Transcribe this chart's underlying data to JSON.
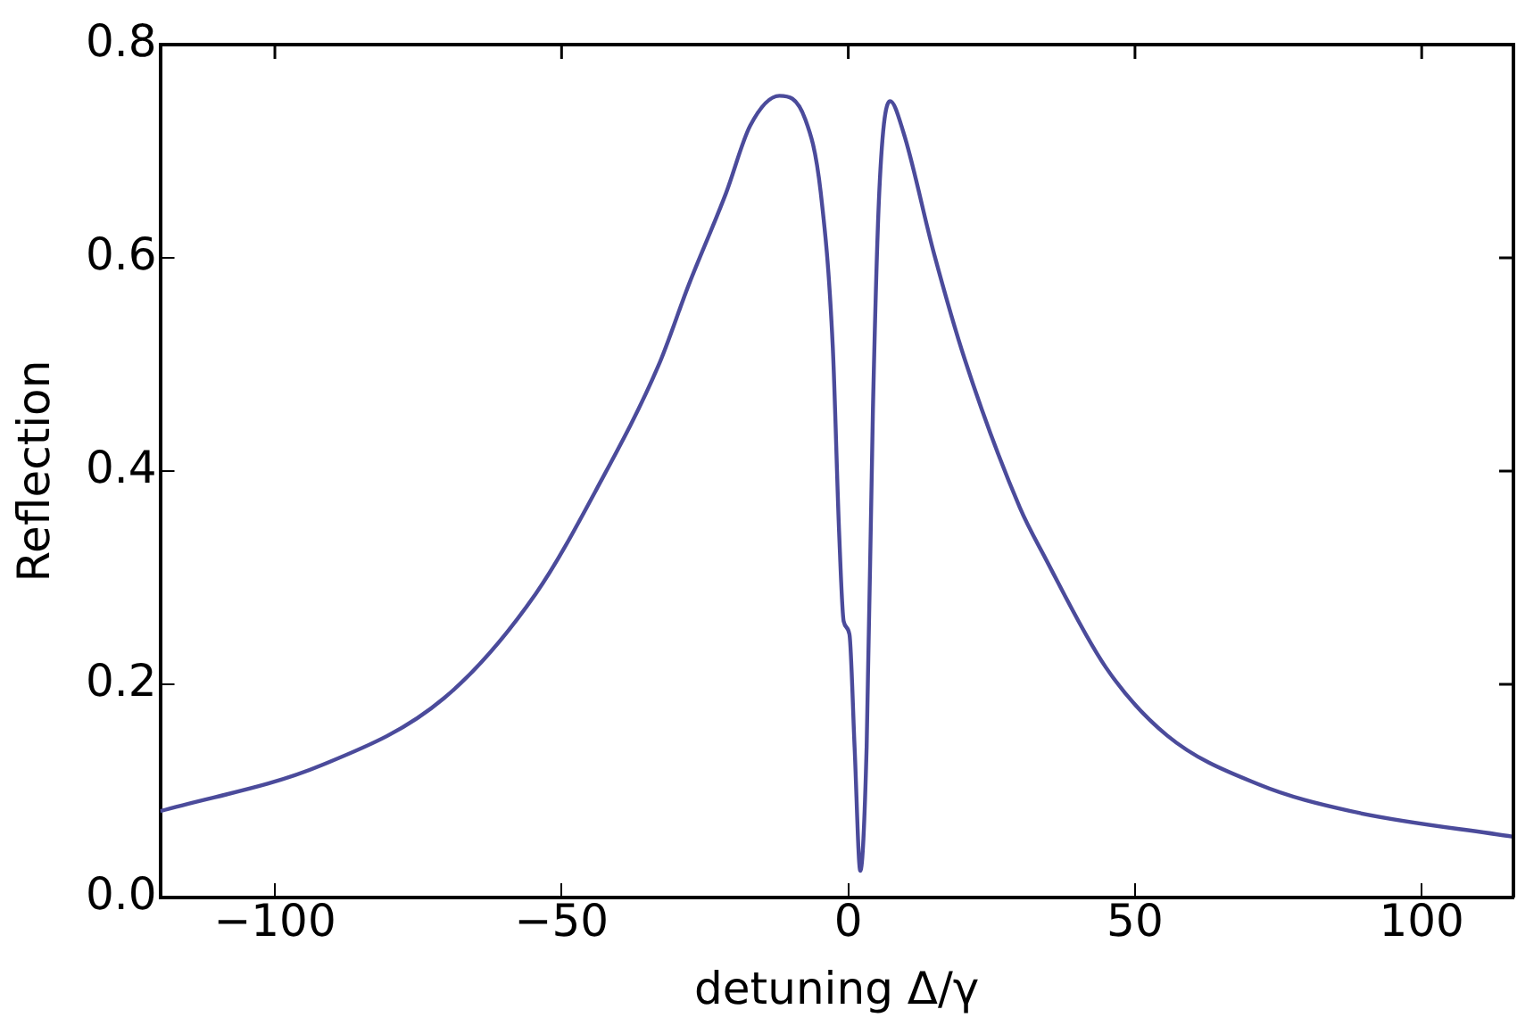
{
  "chart_data": {
    "type": "line",
    "xlabel": "detuning Δ/γ",
    "ylabel": "Reflection",
    "grid": false,
    "legend": false,
    "marker": "none",
    "line_style": "solid",
    "xlim": [
      -120,
      116
    ],
    "ylim": [
      0,
      0.8
    ],
    "xticks": [
      {
        "value": -100,
        "label": "−100"
      },
      {
        "value": -50,
        "label": "−50"
      },
      0,
      50,
      100
    ],
    "yticks": [
      {
        "value": 0,
        "label": "0.0"
      },
      0.2,
      0.4,
      0.6,
      0.8
    ],
    "series": [
      {
        "color": "#4b4b9b",
        "x": [
          -120,
          -91.9,
          -70.5,
          -54.5,
          -43.8,
          -33.1,
          -27.8,
          -21.3,
          -17.1,
          -12,
          -7.5,
          -4.8,
          -2.7,
          -1.6,
          -0.8,
          0.2,
          1.1,
          2.1,
          3.2,
          4.3,
          5.4,
          7.3,
          9.6,
          15,
          20.3,
          29.9,
          34.2,
          44.9,
          55.6,
          71.6,
          87.6,
          116
        ],
        "values": [
          0.081,
          0.124,
          0.187,
          0.285,
          0.384,
          0.499,
          0.575,
          0.661,
          0.724,
          0.752,
          0.73,
          0.661,
          0.516,
          0.343,
          0.259,
          0.247,
          0.141,
          0.025,
          0.141,
          0.458,
          0.661,
          0.747,
          0.718,
          0.603,
          0.505,
          0.366,
          0.32,
          0.216,
          0.152,
          0.106,
          0.081,
          0.057
        ]
      }
    ]
  }
}
